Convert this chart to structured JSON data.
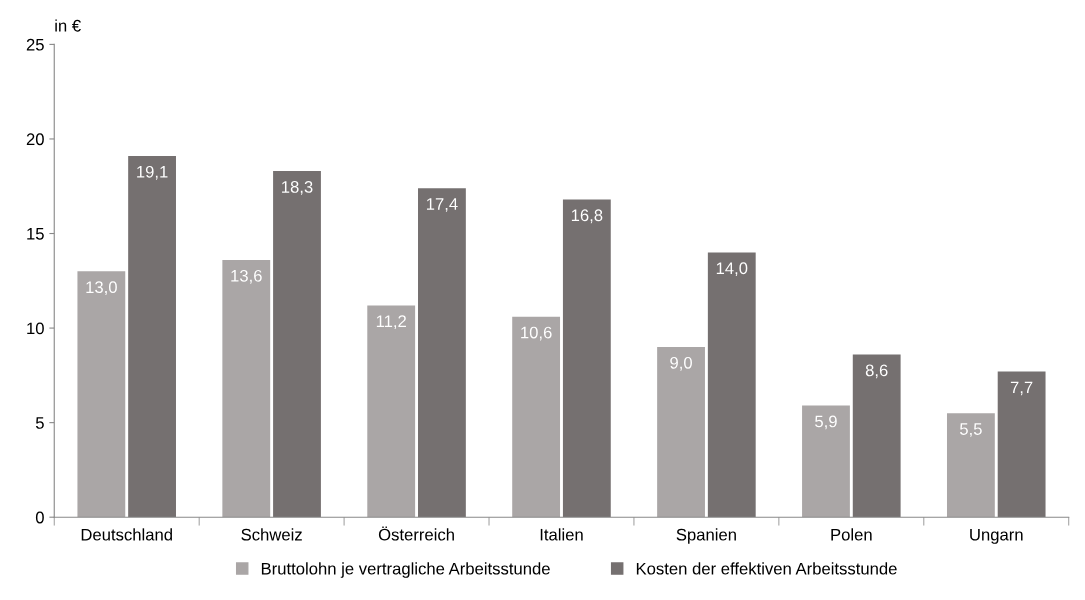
{
  "chart_data": {
    "type": "bar",
    "ylabel": "in €",
    "categories": [
      "Deutschland",
      "Schweiz",
      "Österreich",
      "Italien",
      "Spanien",
      "Polen",
      "Ungarn"
    ],
    "series": [
      {
        "name": "Bruttolohn je vertragliche Arbeitsstunde",
        "color": "#aaa6a6",
        "values": [
          13.0,
          13.6,
          11.2,
          10.6,
          9.0,
          5.9,
          5.5
        ],
        "value_labels": [
          "13,0",
          "13,6",
          "11,2",
          "10,6",
          "9,0",
          "5,9",
          "5,5"
        ]
      },
      {
        "name": "Kosten der effektiven Arbeitsstunde",
        "color": "#757070",
        "values": [
          19.1,
          18.3,
          17.4,
          16.8,
          14.0,
          8.6,
          7.7
        ],
        "value_labels": [
          "19,1",
          "18,3",
          "17,4",
          "16,8",
          "14,0",
          "8,6",
          "7,7"
        ]
      }
    ],
    "ylim": [
      0,
      25
    ],
    "yticks": [
      0,
      5,
      10,
      15,
      20,
      25
    ],
    "grid": false,
    "legend": "bottom"
  }
}
